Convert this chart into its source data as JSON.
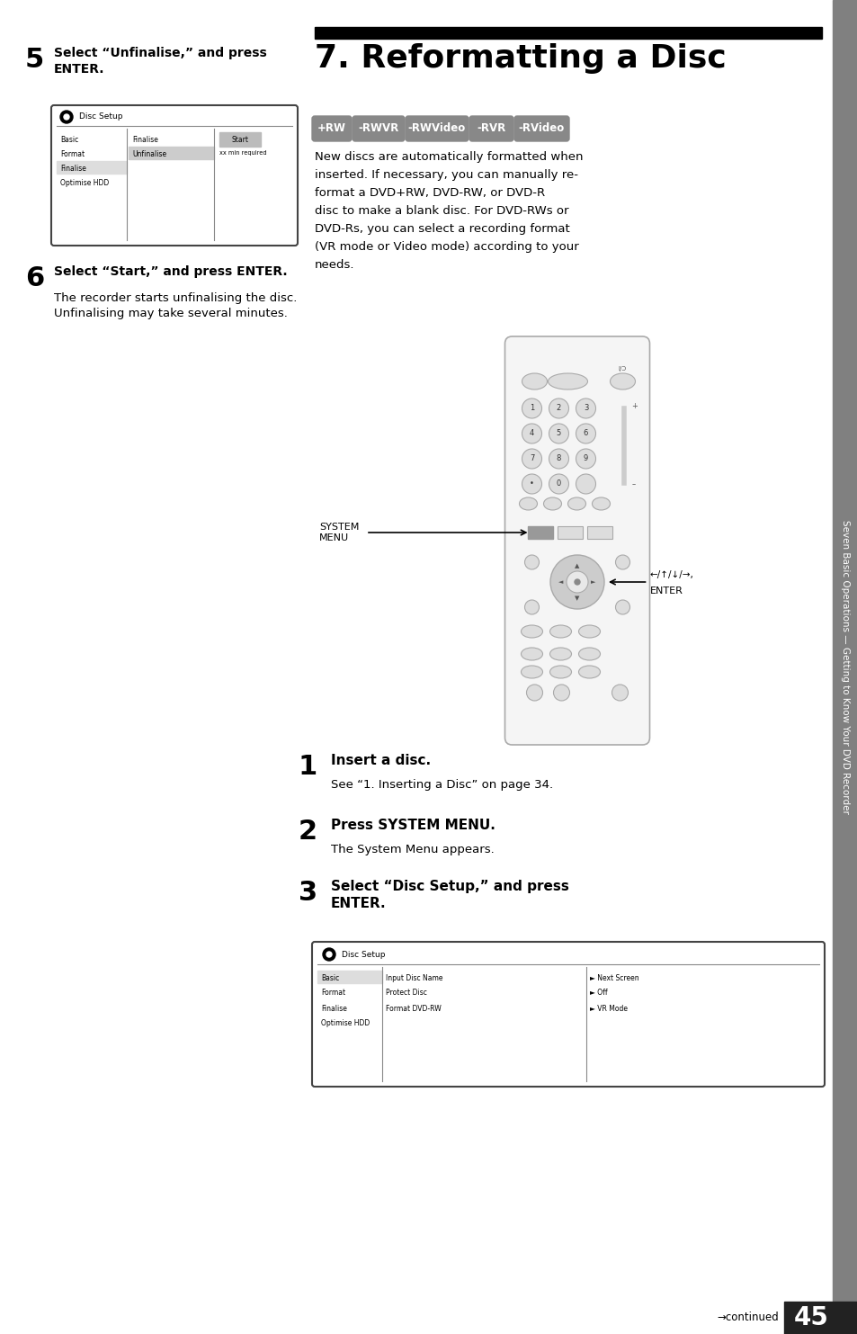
{
  "page_num": "45",
  "chapter_title": "7. Reformatting a Disc",
  "sidebar_text": "Seven Basic Operations — Getting to Know Your DVD Recorder",
  "bg_color": "#ffffff",
  "step5_bold_line1": "Select “Unfinalise,” and press",
  "step5_bold_line2": "ENTER.",
  "step6_bold": "Select “Start,” and press ENTER.",
  "step6_sub1": "The recorder starts unfinalising the disc.",
  "step6_sub2": "Unfinalising may take several minutes.",
  "body_lines": [
    "New discs are automatically formatted when",
    "inserted. If necessary, you can manually re-",
    "format a DVD+RW, DVD-RW, or DVD-R",
    "disc to make a blank disc. For DVD-RWs or",
    "DVD-Rs, you can select a recording format",
    "(VR mode or Video mode) according to your",
    "needs."
  ],
  "step1_bold": "Insert a disc.",
  "step1_sub": "See “1. Inserting a Disc” on page 34.",
  "step2_bold": "Press SYSTEM MENU.",
  "step2_sub": "The System Menu appears.",
  "step3_bold_line1": "Select “Disc Setup,” and press",
  "step3_bold_line2": "ENTER.",
  "continued_text": "→continued",
  "badges": [
    "+RW",
    "-RWVR",
    "-RWVideo",
    "-RVR",
    "-RVideo"
  ],
  "nav_items": [
    "Basic",
    "Format",
    "Finalise",
    "Optimise HDD"
  ],
  "scr5_mid_items": [
    "Finalise",
    "Unfinalise"
  ],
  "scr3_left_items": [
    "Basic",
    "Format",
    "Finalise",
    "Optimise HDD"
  ],
  "scr3_mid_items": [
    "Input Disc Name",
    "Protect Disc",
    "Format DVD-RW"
  ],
  "scr3_right_items": [
    "► Next Screen",
    "► Off",
    "► VR Mode"
  ],
  "system_menu_label": "SYSTEM\nMENU",
  "enter_label": "←/↑/↓/→,\nENTER"
}
